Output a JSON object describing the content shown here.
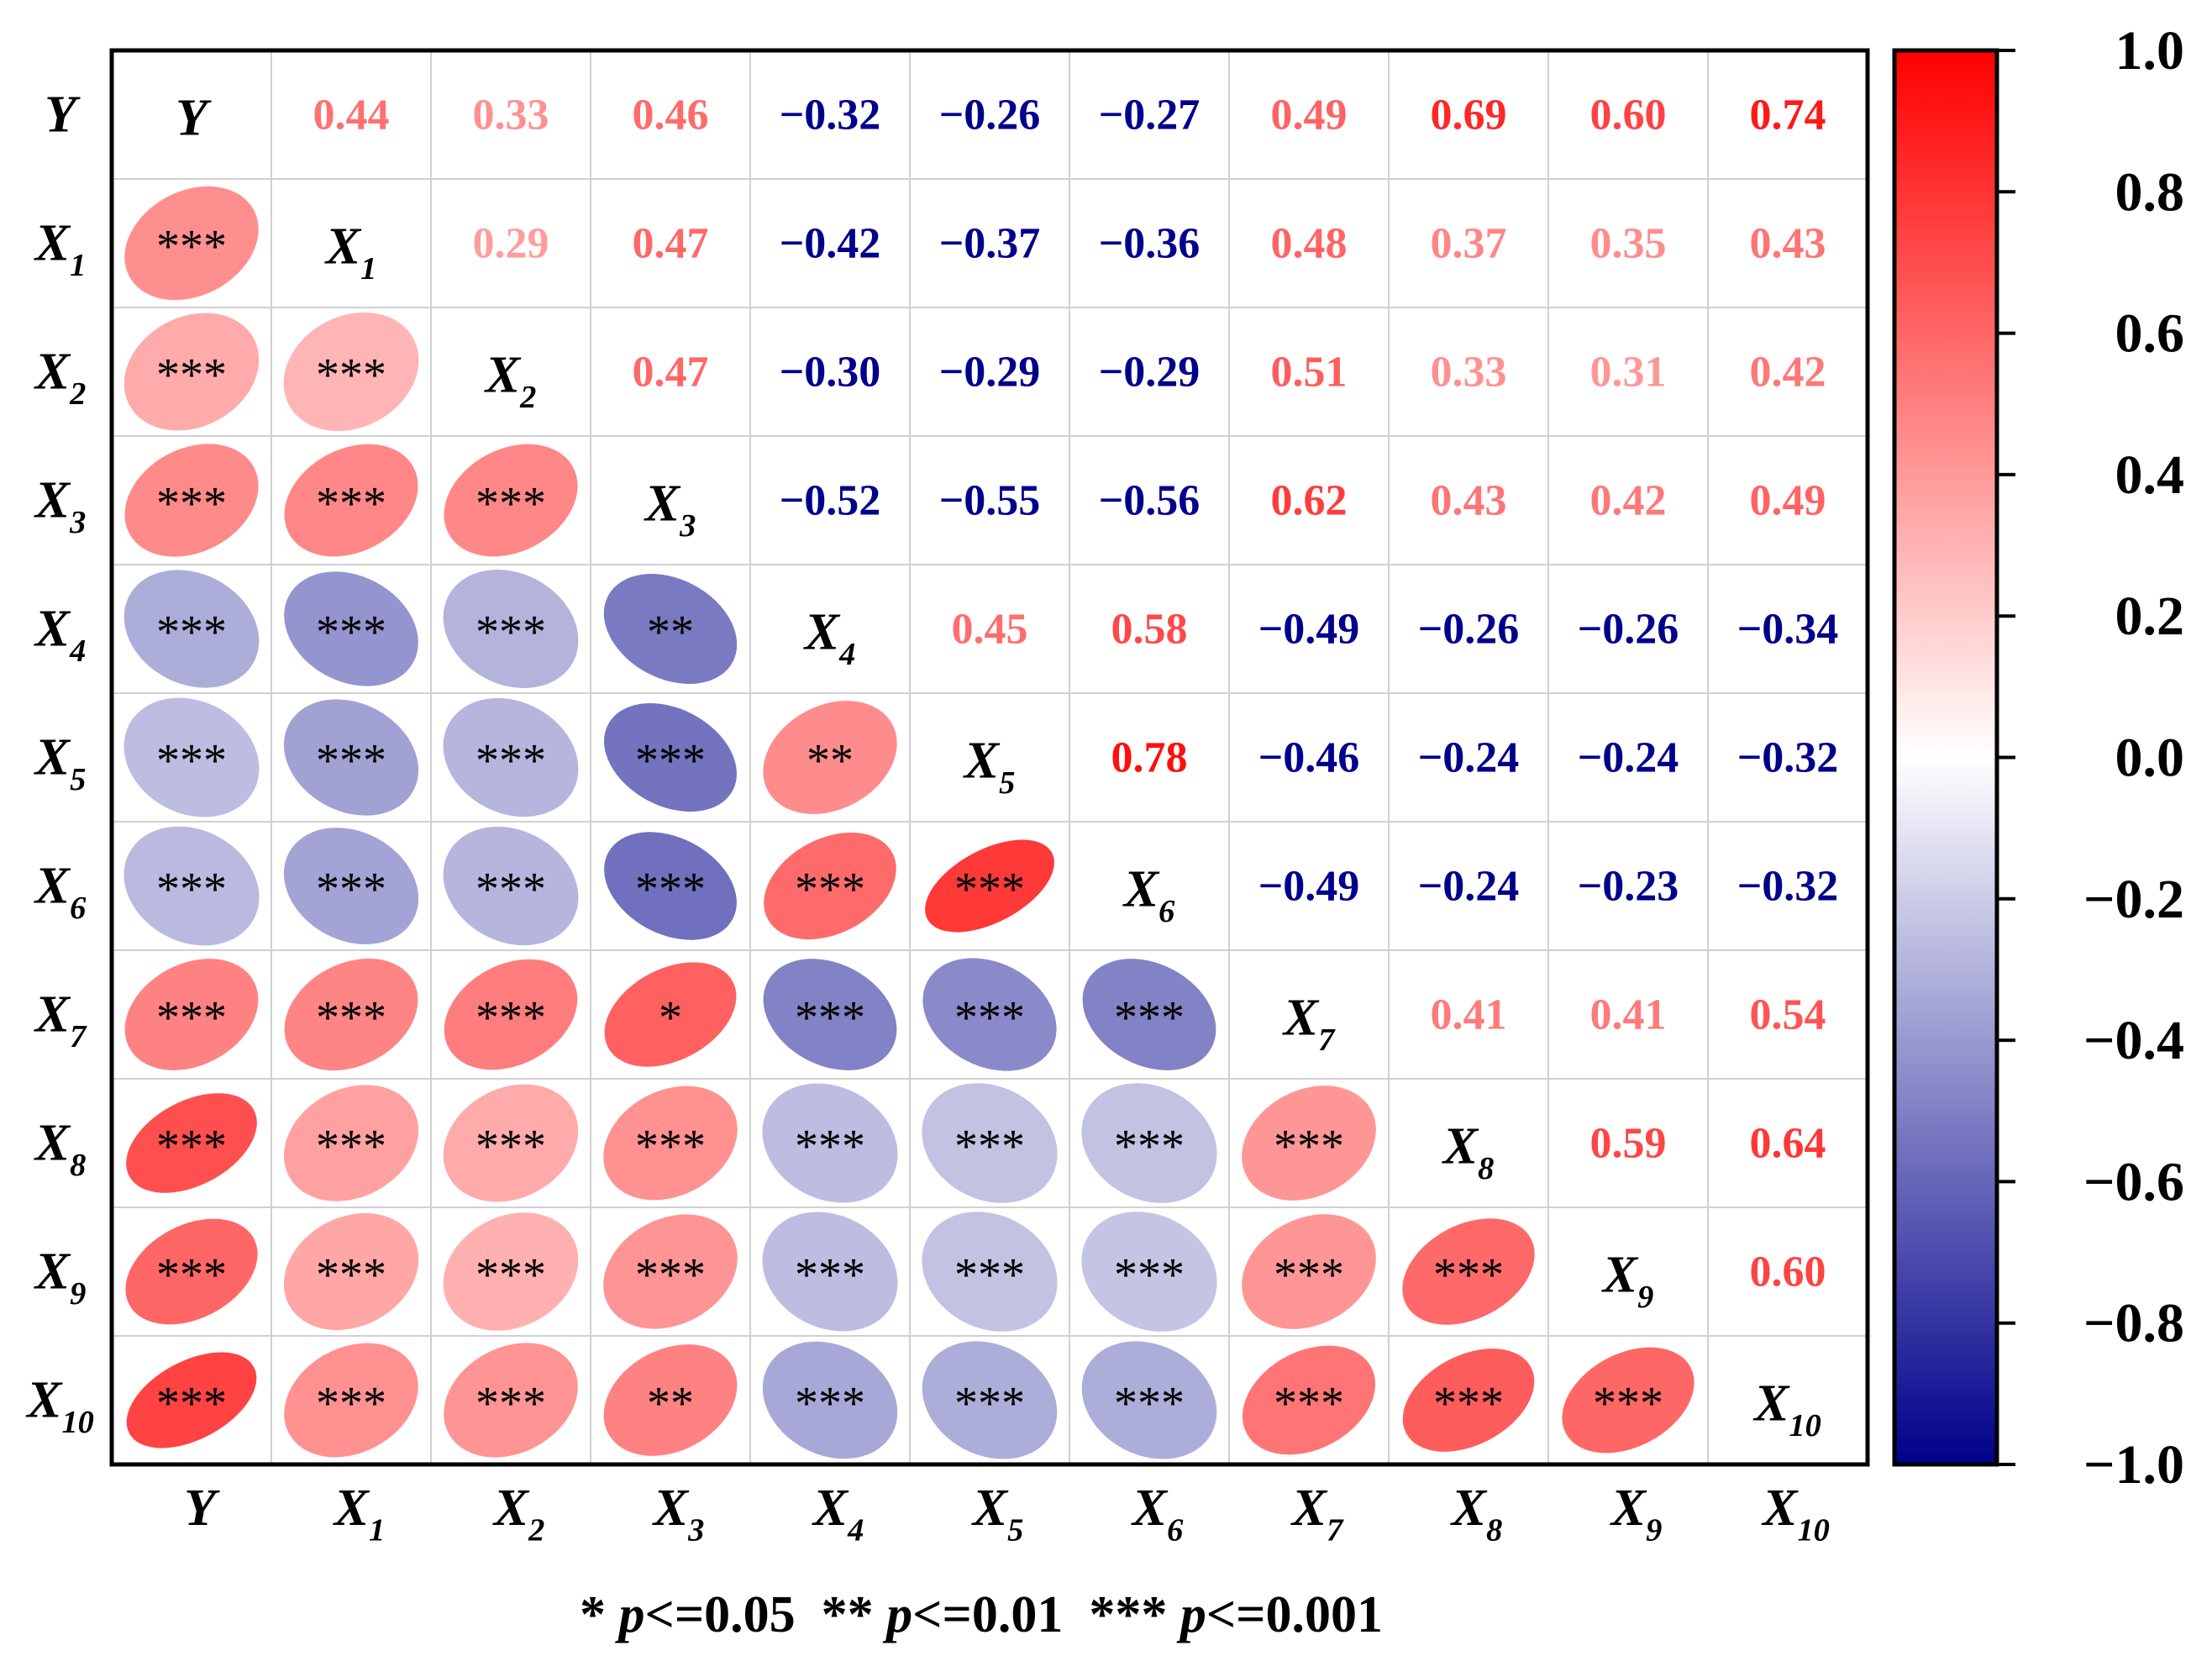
{
  "chart_data": {
    "type": "heatmap",
    "subtype": "correlation-ellipse-matrix",
    "variables": [
      {
        "base": "Y",
        "sub": ""
      },
      {
        "base": "X",
        "sub": "1"
      },
      {
        "base": "X",
        "sub": "2"
      },
      {
        "base": "X",
        "sub": "3"
      },
      {
        "base": "X",
        "sub": "4"
      },
      {
        "base": "X",
        "sub": "5"
      },
      {
        "base": "X",
        "sub": "6"
      },
      {
        "base": "X",
        "sub": "7"
      },
      {
        "base": "X",
        "sub": "8"
      },
      {
        "base": "X",
        "sub": "9"
      },
      {
        "base": "X",
        "sub": "10"
      }
    ],
    "upper_values": [
      [
        "0.44",
        "0.33",
        "0.46",
        "−0.32",
        "−0.26",
        "−0.27",
        "0.49",
        "0.69",
        "0.60",
        "0.74"
      ],
      [
        "0.29",
        "0.47",
        "−0.42",
        "−0.37",
        "−0.36",
        "0.48",
        "0.37",
        "0.35",
        "0.43"
      ],
      [
        "0.47",
        "−0.30",
        "−0.29",
        "−0.29",
        "0.51",
        "0.33",
        "0.31",
        "0.42"
      ],
      [
        "−0.52",
        "−0.55",
        "−0.56",
        "0.62",
        "0.43",
        "0.42",
        "0.49"
      ],
      [
        "0.45",
        "0.58",
        "−0.49",
        "−0.26",
        "−0.26",
        "−0.34"
      ],
      [
        "0.78",
        "−0.46",
        "−0.24",
        "−0.24",
        "−0.32"
      ],
      [
        "−0.49",
        "−0.24",
        "−0.23",
        "−0.32"
      ],
      [
        "0.41",
        "0.41",
        "0.54"
      ],
      [
        "0.59",
        "0.64"
      ],
      [
        "0.60"
      ]
    ],
    "lower_stars": [
      [],
      [
        "***"
      ],
      [
        "***",
        "***"
      ],
      [
        "***",
        "***",
        "***"
      ],
      [
        "***",
        "***",
        "***",
        "**"
      ],
      [
        "***",
        "***",
        "***",
        "***",
        "**"
      ],
      [
        "***",
        "***",
        "***",
        "***",
        "***",
        "***"
      ],
      [
        "***",
        "***",
        "***",
        "*",
        "***",
        "***",
        "***"
      ],
      [
        "***",
        "***",
        "***",
        "***",
        "***",
        "***",
        "***",
        "***"
      ],
      [
        "***",
        "***",
        "***",
        "***",
        "***",
        "***",
        "***",
        "***",
        "***"
      ],
      [
        "***",
        "***",
        "***",
        "**",
        "***",
        "***",
        "***",
        "***",
        "***",
        "***"
      ]
    ],
    "colorbar": {
      "range": [
        -1.0,
        1.0
      ],
      "ticks": [
        "1.0",
        "0.8",
        "0.6",
        "0.4",
        "0.2",
        "0.0",
        "−0.2",
        "−0.4",
        "−0.6",
        "−0.8",
        "−1.0"
      ],
      "colors": {
        "negative": "#00008b",
        "zero": "#ffffff",
        "positive": "#ff0000"
      }
    },
    "significance_legend": [
      {
        "stars": "*",
        "p": "p",
        "op": "<=0.05"
      },
      {
        "stars": "**",
        "p": "p",
        "op": "<=0.01"
      },
      {
        "stars": "***",
        "p": "p",
        "op": "<=0.001"
      }
    ]
  }
}
